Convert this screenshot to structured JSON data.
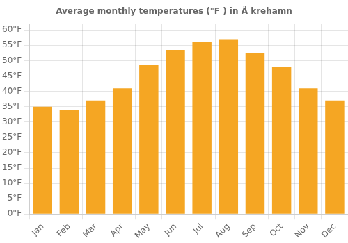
{
  "chart_data": {
    "type": "bar",
    "title": "Average monthly temperatures (°F ) in Å krehamn",
    "categories": [
      "Jan",
      "Feb",
      "Mar",
      "Apr",
      "May",
      "Jun",
      "Jul",
      "Aug",
      "Sep",
      "Oct",
      "Nov",
      "Dec"
    ],
    "values": [
      35.0,
      34.0,
      37.0,
      41.0,
      48.5,
      53.5,
      56.0,
      57.0,
      52.5,
      48.0,
      41.0,
      37.0
    ],
    "color": "#F5A623",
    "ylim": [
      0,
      62
    ],
    "yticks": [
      {
        "value": 0,
        "label": "0°F"
      },
      {
        "value": 5,
        "label": "5°F"
      },
      {
        "value": 10,
        "label": "10°F"
      },
      {
        "value": 15,
        "label": "15°F"
      },
      {
        "value": 20,
        "label": "20°F"
      },
      {
        "value": 25,
        "label": "25°F"
      },
      {
        "value": 30,
        "label": "30°F"
      },
      {
        "value": 35,
        "label": "35°F"
      },
      {
        "value": 40,
        "label": "40°F"
      },
      {
        "value": 45,
        "label": "45°F"
      },
      {
        "value": 50,
        "label": "50°F"
      },
      {
        "value": 55,
        "label": "55°F"
      },
      {
        "value": 60,
        "label": "60°F"
      }
    ],
    "grid": true
  }
}
